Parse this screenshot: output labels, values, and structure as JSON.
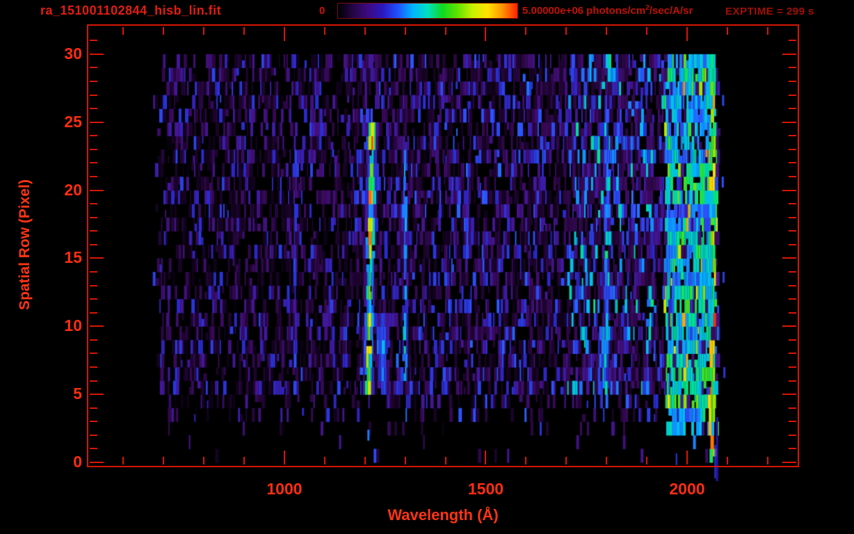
{
  "header": {
    "title": "ra_151001102844_hisb_lin.fit",
    "exptime": "EXPTIME = 299 s"
  },
  "colorbar": {
    "min_label": "0",
    "max_label_prefix": "5.00000e+06 photons/cm",
    "max_label_sup": "2",
    "max_label_suffix": "/sec/A/sr",
    "gradient": [
      "#000004",
      "#240645",
      "#3c0a80",
      "#2a18c0",
      "#2050ff",
      "#00b4ff",
      "#00e0c0",
      "#10d820",
      "#60e400",
      "#c8f000",
      "#ffe400",
      "#ff9400",
      "#ff2000"
    ]
  },
  "axes": {
    "xlabel": "Wavelength (Å)",
    "ylabel": "Spatial Row (Pixel)",
    "x_ticks": [
      1000,
      1500,
      2000
    ],
    "x_minor_from": 600,
    "x_minor_to": 2200,
    "x_minor_step": 100,
    "y_ticks": [
      0,
      5,
      10,
      15,
      20,
      25,
      30
    ],
    "y_minor_from": 1,
    "y_minor_to": 31,
    "y_minor_step": 1,
    "accent_color": "#da1605",
    "label_color": "#ff2d12"
  },
  "chart_data": {
    "type": "heatmap",
    "title": "ra_151001102844_hisb_lin.fit",
    "xlabel": "Wavelength (Å)",
    "ylabel": "Spatial Row (Pixel)",
    "x_range_A": [
      513,
      2275
    ],
    "data_extent_A": [
      660,
      2082
    ],
    "row_range": [
      0,
      30
    ],
    "colorbar_min": 0,
    "colorbar_max": 5000000,
    "colorbar_units": "photons/cm^2/sec/A/sr",
    "exposure_time_s": 299,
    "seed": 151001,
    "background_regions": [
      {
        "from": 650,
        "to": 1180,
        "level": 0.17,
        "density": 0.62
      },
      {
        "from": 1180,
        "to": 1340,
        "level": 0.2,
        "density": 0.72
      },
      {
        "from": 1340,
        "to": 1700,
        "level": 0.2,
        "density": 0.73
      },
      {
        "from": 1700,
        "to": 1945,
        "level": 0.28,
        "density": 0.8
      },
      {
        "from": 1945,
        "to": 2082,
        "level": 0.4,
        "density": 0.82
      }
    ],
    "row_density": [
      0.02,
      0.03,
      0.1,
      0.35,
      0.5,
      0.95,
      1.0,
      0.9,
      1.0,
      0.95,
      1.0,
      0.9,
      0.85,
      0.95,
      1.0,
      0.9,
      1.0,
      0.95,
      0.9,
      1.0,
      1.0,
      0.95,
      1.0,
      0.9,
      0.95,
      1.0,
      0.92,
      1.0,
      1.05,
      1.0
    ],
    "features": [
      {
        "name": "lyman-alpha-emission-line",
        "center_A": 1213,
        "width_A": 16,
        "rows": [
          5,
          24
        ],
        "intensity": 0.82,
        "tilt_A_per_row": 0.5
      },
      {
        "name": "cyan-fringe",
        "center_A": 1245,
        "width_A": 20,
        "rows": [
          5,
          10
        ],
        "intensity": 0.5
      },
      {
        "name": "companion-emission-line",
        "center_A": 1300,
        "width_A": 9,
        "rows": [
          6,
          23
        ],
        "intensity": 0.56
      },
      {
        "name": "weak-blue-line-1027",
        "center_A": 1027,
        "width_A": 6,
        "rows": [
          5,
          23
        ],
        "intensity": 0.42
      },
      {
        "name": "emission-line-1800",
        "center_A": 1800,
        "width_A": 9,
        "rows": [
          5,
          23
        ],
        "intensity": 0.55
      },
      {
        "name": "right-airglow-band",
        "center_A": 2010,
        "width_A": 62,
        "rows": [
          2,
          29
        ],
        "intensity": 0.6,
        "flat": true,
        "gap": 0.25
      },
      {
        "name": "hot-edge-column",
        "center_A": 2062,
        "width_A": 7,
        "rows": [
          0,
          29
        ],
        "intensity": 0.72,
        "flat": true,
        "gap": 0.1,
        "hot_fraction": 0.08
      }
    ],
    "isolated_points": [
      {
        "lambda_A": 1206,
        "row": 1.4,
        "value": 0.5
      },
      {
        "lambda_A": 2086,
        "row": 20,
        "value": 0.45
      },
      {
        "lambda_A": 2088,
        "row": 13,
        "value": 0.4
      },
      {
        "lambda_A": 2090,
        "row": 6,
        "value": 0.38
      },
      {
        "lambda_A": 2087,
        "row": 26,
        "value": 0.42
      }
    ],
    "underflow_marks": [
      {
        "lambda_A": 2072,
        "y_from": 600,
        "y_to": 692,
        "w": 3,
        "color": "#2a14b0"
      },
      {
        "lambda_A": 2068,
        "y_from": 640,
        "y_to": 688,
        "w": 2,
        "color": "#2a3ae0"
      },
      {
        "lambda_A": 1972,
        "y_from": 652,
        "y_to": 669,
        "w": 2,
        "color": "#2a3ae0"
      }
    ]
  }
}
